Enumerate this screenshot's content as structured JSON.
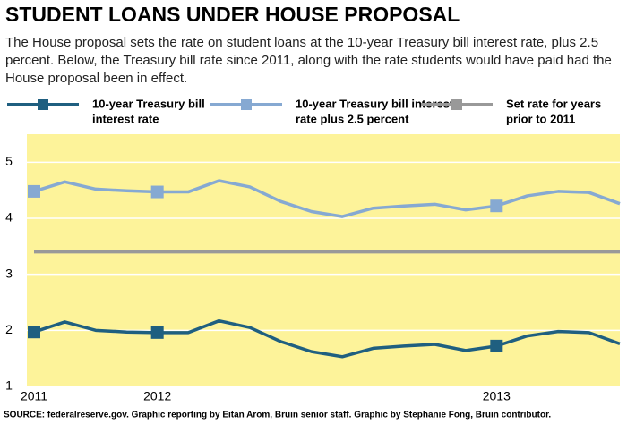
{
  "chart_data": {
    "type": "line",
    "title": "STUDENT LOANS UNDER HOUSE PROPOSAL",
    "subtitle": [
      "The House proposal sets the rate on student loans at the 10-year Treasury bill interest rate, plus 2.5",
      "percent. Below, the Treasury bill rate since 2011, along with the rate students would have paid had the",
      "House proposal been in effect."
    ],
    "categories": [
      "2011",
      null,
      null,
      null,
      "2012",
      null,
      null,
      null,
      null,
      null,
      null,
      null,
      null,
      null,
      null,
      "2013",
      null,
      null,
      null,
      null
    ],
    "series": [
      {
        "name": [
          "10-year Treasury bill",
          "interest rate"
        ],
        "color": "#1f5f80",
        "values": [
          1.97,
          2.15,
          2.0,
          1.97,
          1.96,
          1.96,
          2.17,
          2.05,
          1.8,
          1.62,
          1.53,
          1.68,
          1.72,
          1.75,
          1.64,
          1.72,
          1.9,
          1.98,
          1.96,
          1.76
        ]
      },
      {
        "name": [
          "10-year Treasury bill interest",
          "rate plus 2.5 percent"
        ],
        "color": "#86a9d2",
        "values": [
          4.48,
          4.65,
          4.52,
          4.49,
          4.47,
          4.47,
          4.67,
          4.56,
          4.3,
          4.12,
          4.03,
          4.18,
          4.22,
          4.25,
          4.15,
          4.22,
          4.4,
          4.48,
          4.46,
          4.26
        ]
      },
      {
        "name": [
          "Set rate for years",
          "prior to 2011"
        ],
        "color": "#999999",
        "values": [
          3.4,
          3.4,
          3.4,
          3.4,
          3.4,
          3.4,
          3.4,
          3.4,
          3.4,
          3.4,
          3.4,
          3.4,
          3.4,
          3.4,
          3.4,
          3.4,
          3.4,
          3.4,
          3.4,
          3.4
        ]
      }
    ],
    "ylim": [
      1,
      5.5
    ],
    "yticks": [
      1,
      2,
      3,
      4,
      5
    ],
    "grid": true,
    "source": "SOURCE: federalreserve.gov. Graphic reporting by Eitan Arom, Bruin senior staff. Graphic by Stephanie Fong, Bruin contributor."
  }
}
